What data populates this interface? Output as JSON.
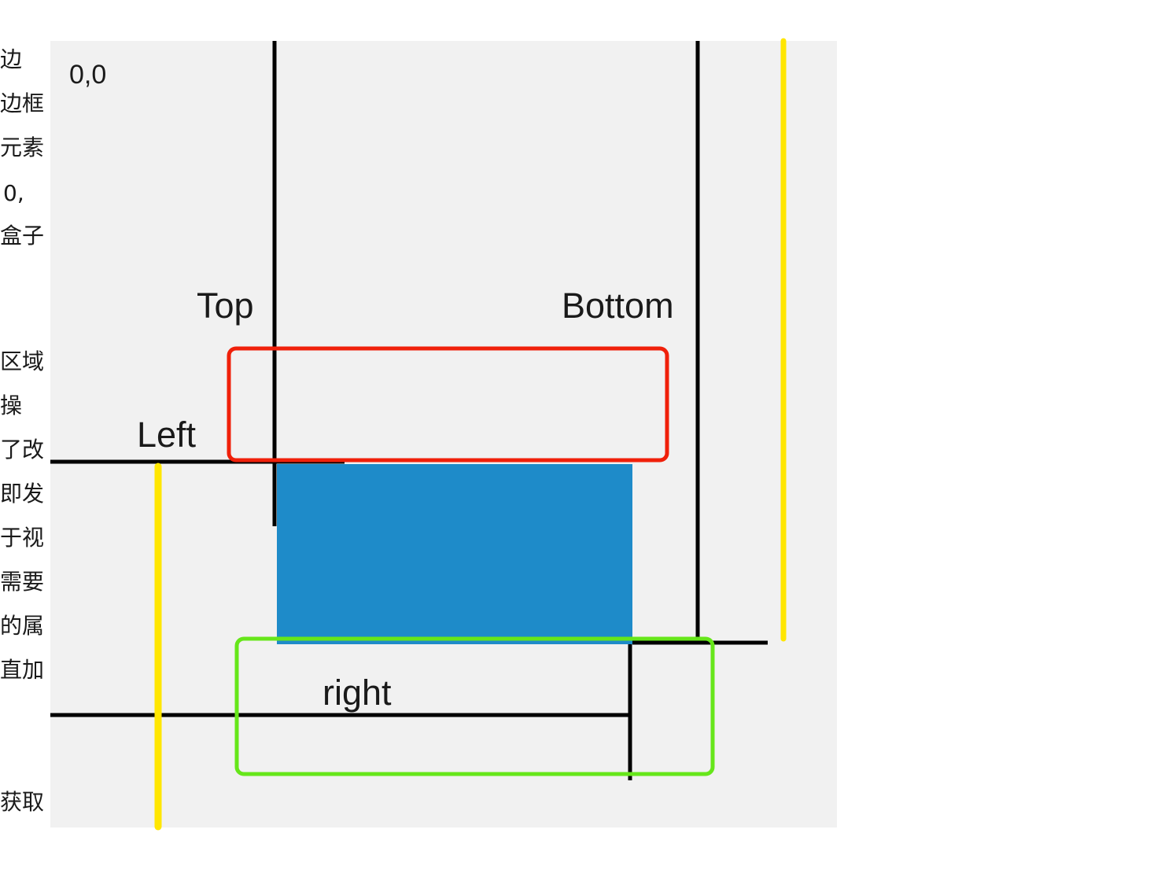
{
  "sidebar_text_fragments": [
    "边",
    "边框",
    "元素",
    "0,",
    "盒子",
    "区域",
    "操",
    "了改",
    "即发",
    "于视",
    "需要",
    "的属",
    "直加",
    "获取"
  ],
  "diagram": {
    "origin_label": "0,0",
    "top_label": "Top",
    "bottom_label": "Bottom",
    "left_label": "Left",
    "right_label": "right"
  },
  "colors": {
    "canvas_background": "#f1f1f1",
    "element_box": "#1e8bc9",
    "reference_lines": "#000000",
    "highlight_red": "#f0200a",
    "highlight_green": "#66e61a",
    "highlight_yellow": "#ffe600"
  }
}
